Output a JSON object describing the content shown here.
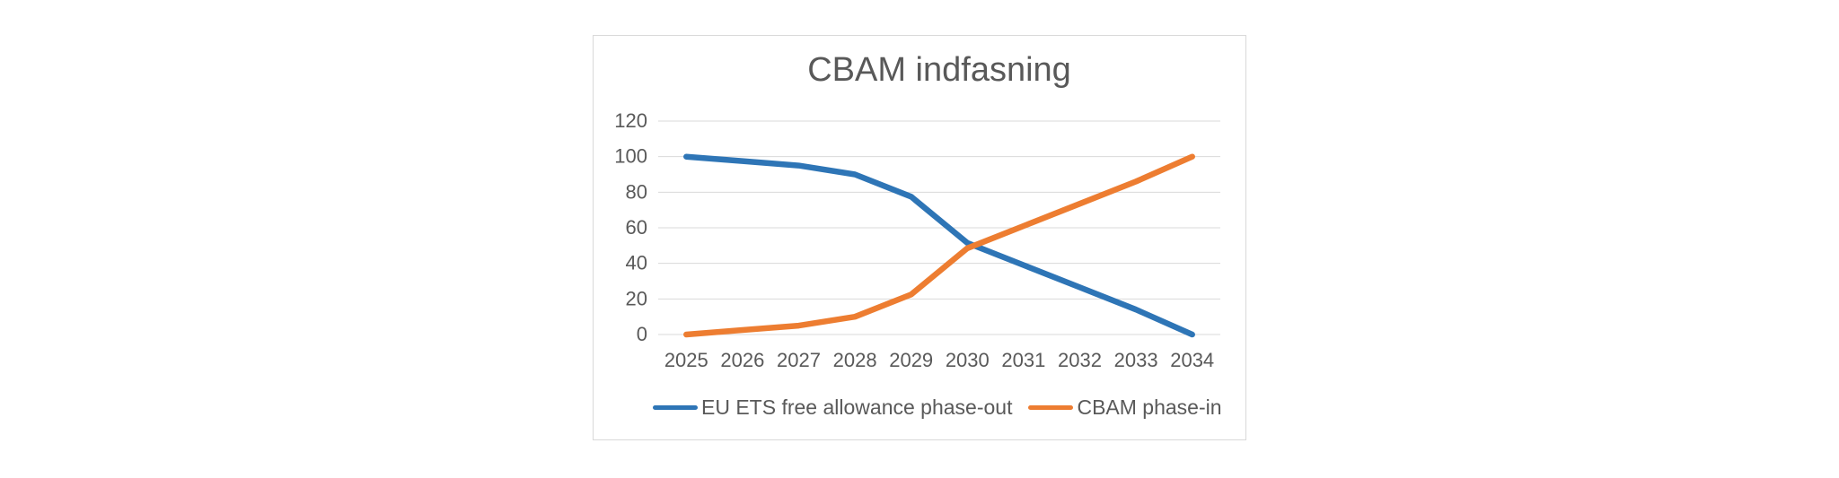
{
  "chart_data": {
    "type": "line",
    "title": "CBAM indfasning",
    "categories": [
      "2025",
      "2026",
      "2027",
      "2028",
      "2029",
      "2030",
      "2031",
      "2032",
      "2033",
      "2034"
    ],
    "series": [
      {
        "name": "EU ETS free allowance phase-out",
        "color": "#2E75B6",
        "values": [
          100,
          97.5,
          95,
          90,
          77.5,
          51.5,
          39,
          26.5,
          14,
          0
        ]
      },
      {
        "name": "CBAM phase-in",
        "color": "#ED7D31",
        "values": [
          0,
          2.5,
          5,
          10,
          22.5,
          48.5,
          61,
          73.5,
          86,
          100
        ]
      }
    ],
    "xlabel": "",
    "ylabel": "",
    "ylim": [
      0,
      120
    ],
    "yticks": [
      0,
      20,
      40,
      60,
      80,
      100,
      120
    ],
    "grid": true,
    "legend_position": "bottom",
    "colors": {
      "grid": "#D9D9D9",
      "chart_border": "#D9D9D9",
      "title_text": "#595959",
      "axis_text": "#595959",
      "legend_text": "#595959",
      "background": "#FFFFFF"
    }
  }
}
